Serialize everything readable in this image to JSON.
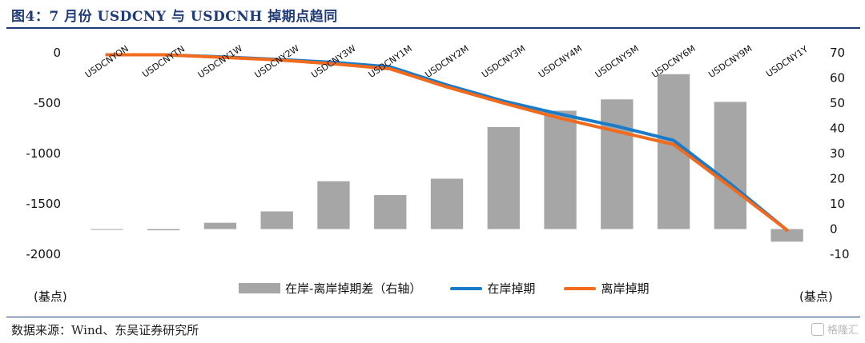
{
  "title": "图4：7 月份 USDCNY 与 USDCNH 掉期点趋同",
  "source": "数据来源：Wind、东吴证券研究所",
  "watermark": "格隆汇",
  "left_unit": "(基点)",
  "right_unit": "(基点)",
  "colors": {
    "bar": "#a6a6a6",
    "onshore": "#1a7cc9",
    "offshore": "#f26b1d",
    "title": "#1f3b78"
  },
  "chart_data": {
    "type": "bar+line",
    "categories": [
      "USDCNYON",
      "USDCNYTN",
      "USDCNY1W",
      "USDCNY2W",
      "USDCNY3W",
      "USDCNY1M",
      "USDCNY2M",
      "USDCNY3M",
      "USDCNY4M",
      "USDCNY5M",
      "USDCNY6M",
      "USDCNY9M",
      "USDCNY1Y"
    ],
    "left_axis": {
      "min": -2000,
      "max": 0,
      "ticks": [
        0,
        -500,
        -1000,
        -1500,
        -2000
      ],
      "tick_labels": [
        "0",
        "-500",
        "-1000",
        "-1500",
        "-2000"
      ]
    },
    "right_axis": {
      "min": -10,
      "max": 70,
      "ticks": [
        70,
        60,
        50,
        40,
        30,
        20,
        10,
        0,
        -10
      ],
      "tick_labels": [
        "70",
        "60",
        "50",
        "40",
        "30",
        "20",
        "10",
        "0",
        "-10"
      ]
    },
    "series": [
      {
        "name": "在岸-离岸掉期差（右轴）",
        "type": "bar",
        "axis": "right",
        "values": [
          0,
          -0.5,
          2.5,
          7,
          19,
          13.5,
          20,
          40.5,
          47,
          51.5,
          61.5,
          50.5,
          -5
        ]
      },
      {
        "name": "在岸掉期",
        "type": "line",
        "axis": "left",
        "values": [
          -20,
          -20,
          -40,
          -65,
          -95,
          -140,
          -320,
          -480,
          -610,
          -730,
          -870,
          -1300,
          -1760
        ]
      },
      {
        "name": "离岸掉期",
        "type": "line",
        "axis": "left",
        "values": [
          -20,
          -20,
          -45,
          -70,
          -110,
          -160,
          -340,
          -500,
          -650,
          -780,
          -910,
          -1330,
          -1760
        ]
      }
    ]
  }
}
